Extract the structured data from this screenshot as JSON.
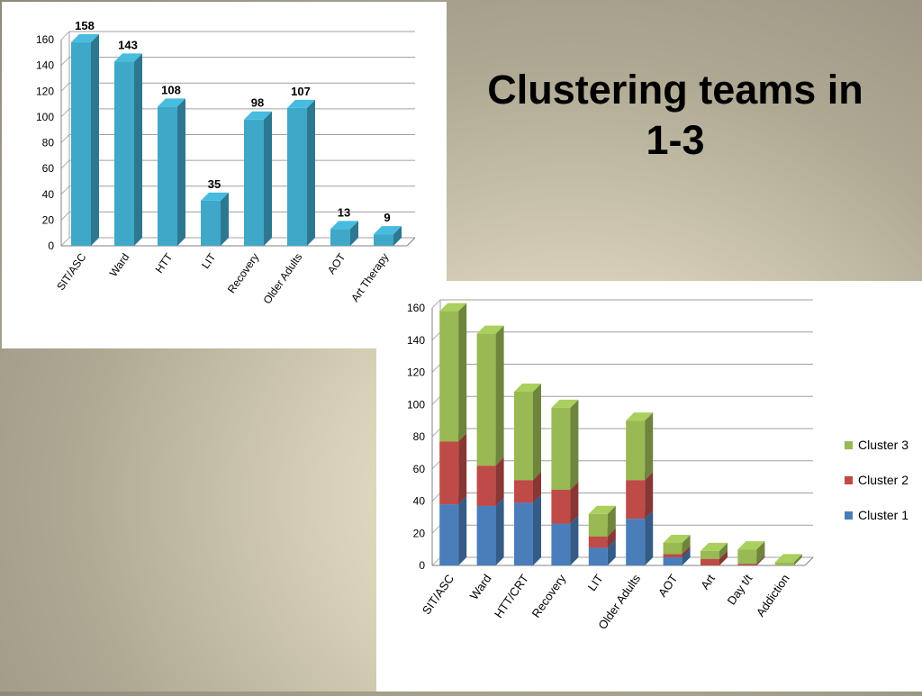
{
  "slide": {
    "title": "Clustering teams in 1-3"
  },
  "chart_data": [
    {
      "type": "bar",
      "title": "",
      "categories": [
        "SIT/ASC",
        "Ward",
        "HTT",
        "LIT",
        "Recovery",
        "Older Adults",
        "AOT",
        "Art Therapy"
      ],
      "values": [
        158,
        143,
        108,
        35,
        98,
        107,
        13,
        9
      ],
      "ylim": [
        0,
        160
      ],
      "yticks": [
        0,
        20,
        40,
        60,
        80,
        100,
        120,
        140,
        160
      ],
      "grid": true,
      "data_labels": true,
      "bar_color": "#3fa7c8"
    },
    {
      "type": "bar",
      "stacked": true,
      "title": "",
      "categories": [
        "SIT/ASC",
        "Ward",
        "HTT/CRT",
        "Recovery",
        "LIT",
        "Older Adults",
        "AOT",
        "Art",
        "Day t/t",
        "Addiction"
      ],
      "series": [
        {
          "name": "Cluster 1",
          "color": "#4a7ebb",
          "values": [
            38,
            37,
            39,
            26,
            11,
            29,
            5,
            0,
            0,
            0
          ]
        },
        {
          "name": "Cluster 2",
          "color": "#be4b48",
          "values": [
            39,
            25,
            14,
            21,
            7,
            24,
            2,
            4,
            1,
            0
          ]
        },
        {
          "name": "Cluster 3",
          "color": "#98b954",
          "values": [
            81,
            82,
            55,
            51,
            14,
            37,
            7,
            5,
            9,
            2
          ]
        }
      ],
      "ylim": [
        0,
        160
      ],
      "yticks": [
        0,
        20,
        40,
        60,
        80,
        100,
        120,
        140,
        160
      ],
      "grid": true,
      "legend": "right"
    }
  ]
}
